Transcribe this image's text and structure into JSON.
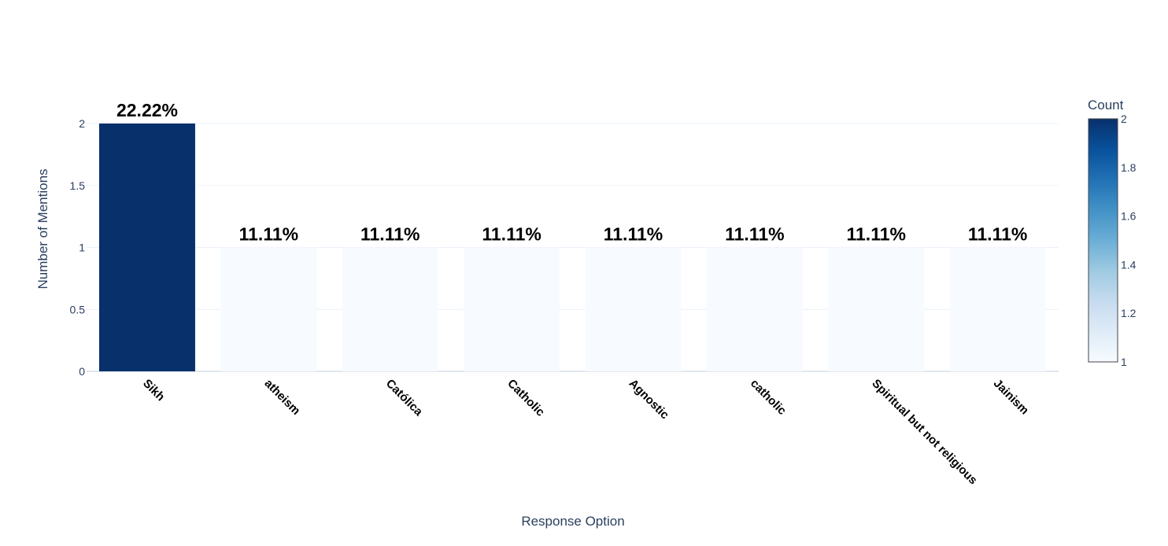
{
  "chart_data": {
    "type": "bar",
    "categories": [
      "Sikh",
      "atheism",
      "Católica",
      "Catholic",
      "Agnostic",
      "catholic",
      "Spiritual but not religious",
      "Jainism"
    ],
    "values": [
      2,
      1,
      1,
      1,
      1,
      1,
      1,
      1
    ],
    "data_labels": [
      "22.22%",
      "11.11%",
      "11.11%",
      "11.11%",
      "11.11%",
      "11.11%",
      "11.11%",
      "11.11%"
    ],
    "xlabel": "Response Option",
    "ylabel": "Number of Mentions",
    "ylim": [
      0,
      2
    ],
    "yticks": [
      "0",
      "0.5",
      "1",
      "1.5",
      "2"
    ],
    "grid": true,
    "colorbar": {
      "title": "Count",
      "range": [
        1,
        2
      ],
      "ticks": [
        "1",
        "1.2",
        "1.4",
        "1.6",
        "1.8",
        "2"
      ],
      "colorscale": [
        "#f7fbff",
        "#deebf7",
        "#c6dbef",
        "#9ecae1",
        "#6baed6",
        "#4292c6",
        "#2171b5",
        "#08519c",
        "#08306b"
      ]
    }
  }
}
